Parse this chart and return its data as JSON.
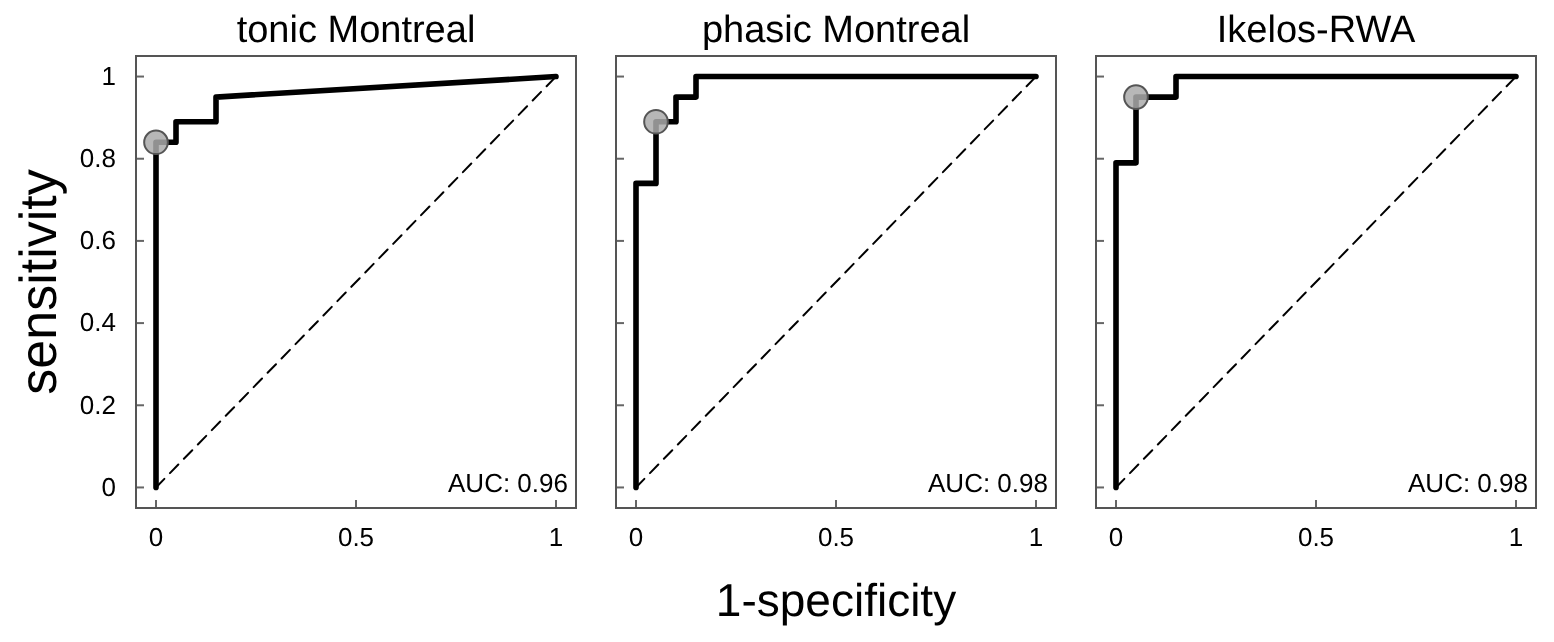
{
  "chart_data": [
    {
      "type": "line",
      "title": "tonic Montreal",
      "ylabel": "sensitivity",
      "annotations": [
        "AUC: 0.96"
      ],
      "xlim": [
        -0.05,
        1.05
      ],
      "ylim": [
        -0.05,
        1.05
      ],
      "xticks": [
        0,
        0.5,
        1
      ],
      "yticks": [
        0,
        0.2,
        0.4,
        0.6,
        0.8,
        1
      ],
      "series": [
        {
          "color": "#000000",
          "line_style": "dashed",
          "x": [
            0,
            1
          ],
          "values": [
            0,
            1
          ]
        },
        {
          "color": "#000000",
          "line_style": "solid",
          "x": [
            0,
            0,
            0.05,
            0.05,
            0.15,
            0.15,
            1
          ],
          "values": [
            0,
            0.84,
            0.84,
            0.89,
            0.89,
            0.95,
            1
          ]
        },
        {
          "type": "scatter",
          "color": "#aaaaaa",
          "marker": "circle",
          "x": [
            0
          ],
          "values": [
            0.84
          ]
        }
      ]
    },
    {
      "type": "line",
      "title": "phasic Montreal",
      "xlabel": "1-specificity",
      "annotations": [
        "AUC: 0.98"
      ],
      "tick_labels": "x",
      "xlim": [
        -0.05,
        1.05
      ],
      "ylim": [
        -0.05,
        1.05
      ],
      "xticks": [
        0,
        0.5,
        1
      ],
      "yticks": [
        0,
        0.2,
        0.4,
        0.6,
        0.8,
        1
      ],
      "series": [
        {
          "color": "#000000",
          "line_style": "dashed",
          "x": [
            0,
            1
          ],
          "values": [
            0,
            1
          ]
        },
        {
          "color": "#000000",
          "line_style": "solid",
          "x": [
            0,
            0,
            0.05,
            0.05,
            0.1,
            0.1,
            0.15,
            0.15,
            1
          ],
          "values": [
            0,
            0.74,
            0.74,
            0.89,
            0.89,
            0.95,
            0.95,
            1,
            1
          ]
        },
        {
          "type": "scatter",
          "color": "#aaaaaa",
          "marker": "circle",
          "x": [
            0.05
          ],
          "values": [
            0.89
          ]
        }
      ]
    },
    {
      "type": "line",
      "title": "Ikelos-RWA",
      "annotations": [
        "AUC: 0.98"
      ],
      "tick_labels": "x",
      "xlim": [
        -0.05,
        1.05
      ],
      "ylim": [
        -0.05,
        1.05
      ],
      "xticks": [
        0,
        0.5,
        1
      ],
      "yticks": [
        0,
        0.2,
        0.4,
        0.6,
        0.8,
        1
      ],
      "series": [
        {
          "color": "#000000",
          "line_style": "dashed",
          "x": [
            0,
            1
          ],
          "values": [
            0,
            1
          ]
        },
        {
          "color": "#000000",
          "line_style": "solid",
          "x": [
            0,
            0,
            0.05,
            0.05,
            0.15,
            0.15,
            1
          ],
          "values": [
            0,
            0.79,
            0.79,
            0.95,
            0.95,
            1,
            1
          ]
        },
        {
          "type": "scatter",
          "color": "#aaaaaa",
          "marker": "circle",
          "x": [
            0.05
          ],
          "values": [
            0.95
          ]
        }
      ]
    }
  ]
}
